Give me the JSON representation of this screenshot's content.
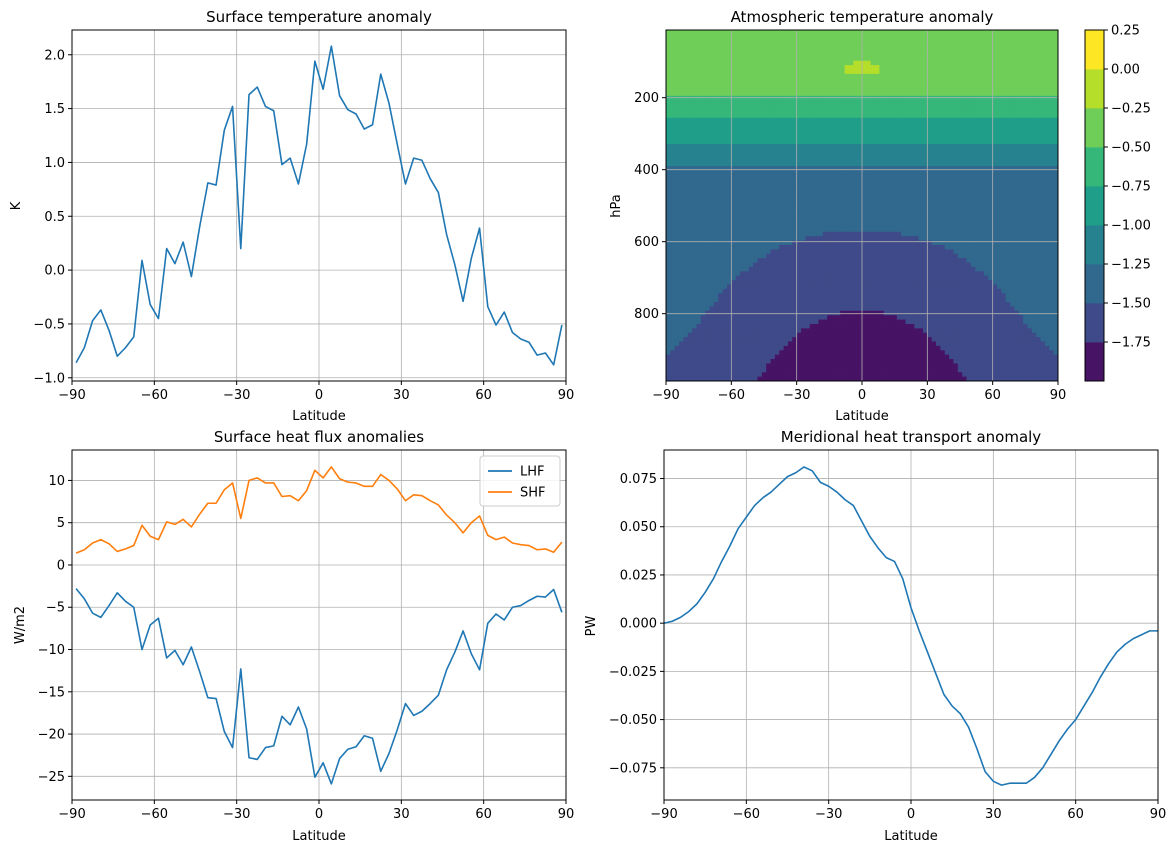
{
  "chart_data": [
    {
      "id": "surface_temp",
      "type": "line",
      "title": "Surface temperature anomaly",
      "xlabel": "Latitude",
      "ylabel": "K",
      "xlim": [
        -90,
        90
      ],
      "ylim": [
        -1.03,
        2.23
      ],
      "xticks": [
        -90,
        -60,
        -30,
        0,
        30,
        60,
        90
      ],
      "yticks": [
        -1.0,
        -0.5,
        0.0,
        0.5,
        1.0,
        1.5,
        2.0
      ],
      "ytick_labels": [
        "−1.0",
        "−0.5",
        "0.0",
        "0.5",
        "1.0",
        "1.5",
        "2.0"
      ],
      "xtick_labels": [
        "−90",
        "−60",
        "−30",
        "0",
        "30",
        "60",
        "90"
      ],
      "grid": true,
      "series": [
        {
          "name": "surface temperature",
          "color": "#1f77b4",
          "x": [
            -88.5,
            -85.5,
            -82.5,
            -79.5,
            -76.5,
            -73.5,
            -70.5,
            -67.5,
            -64.5,
            -61.5,
            -58.5,
            -55.5,
            -52.5,
            -49.5,
            -46.5,
            -43.5,
            -40.5,
            -37.5,
            -34.5,
            -31.5,
            -28.5,
            -25.5,
            -22.5,
            -19.5,
            -16.5,
            -13.5,
            -10.5,
            -7.5,
            -4.5,
            -1.5,
            1.5,
            4.5,
            7.5,
            10.5,
            13.5,
            16.5,
            19.5,
            22.5,
            25.5,
            28.5,
            31.5,
            34.5,
            37.5,
            40.5,
            43.5,
            46.5,
            49.5,
            52.5,
            55.5,
            58.5,
            61.5,
            64.5,
            67.5,
            70.5,
            73.5,
            76.5,
            79.5,
            82.5,
            85.5,
            88.5
          ],
          "values": [
            -0.86,
            -0.72,
            -0.47,
            -0.37,
            -0.56,
            -0.8,
            -0.72,
            -0.62,
            0.09,
            -0.32,
            -0.45,
            0.2,
            0.06,
            0.26,
            -0.06,
            0.4,
            0.81,
            0.79,
            1.3,
            1.52,
            0.2,
            1.63,
            1.7,
            1.52,
            1.48,
            0.98,
            1.04,
            0.8,
            1.17,
            1.94,
            1.68,
            2.08,
            1.62,
            1.49,
            1.45,
            1.31,
            1.35,
            1.82,
            1.55,
            1.17,
            0.8,
            1.04,
            1.02,
            0.85,
            0.72,
            0.33,
            0.05,
            -0.29,
            0.11,
            0.39,
            -0.34,
            -0.51,
            -0.39,
            -0.58,
            -0.64,
            -0.67,
            -0.79,
            -0.77,
            -0.88,
            -0.51
          ]
        }
      ]
    },
    {
      "id": "atmos_temp",
      "type": "heatmap",
      "title": "Atmospheric temperature anomaly",
      "xlabel": "Latitude",
      "ylabel": "hPa",
      "xlim": [
        -90,
        90
      ],
      "ylim": [
        987,
        12
      ],
      "y_inverted": true,
      "xticks": [
        -90,
        -60,
        -30,
        0,
        30,
        60,
        90
      ],
      "xtick_labels": [
        "−90",
        "−60",
        "−30",
        "0",
        "30",
        "60",
        "90"
      ],
      "yticks": [
        200,
        400,
        600,
        800
      ],
      "ytick_labels": [
        "200",
        "400",
        "600",
        "800"
      ],
      "grid": true,
      "levels": [
        -1.75,
        -1.5,
        -1.25,
        -1.0,
        -0.75,
        -0.5,
        -0.25,
        0.0,
        0.25
      ],
      "level_colors": [
        "#471365",
        "#3e4a89",
        "#31688e",
        "#26828e",
        "#1f9e89",
        "#35b779",
        "#6ece58",
        "#b5de2b",
        "#fde725"
      ],
      "colorbar_ticks": [
        "0.25",
        "0.00",
        "−0.25",
        "−0.50",
        "−0.75",
        "−1.00",
        "−1.25",
        "−1.50",
        "−1.75"
      ],
      "surface_max_anomaly": -1.7,
      "stratosphere_max_anomaly": 0.05
    },
    {
      "id": "heat_flux",
      "type": "line",
      "title": "Surface heat flux anomalies",
      "xlabel": "Latitude",
      "ylabel": "W/m2",
      "xlim": [
        -90,
        90
      ],
      "ylim": [
        -27.8,
        13.6
      ],
      "xticks": [
        -90,
        -60,
        -30,
        0,
        30,
        60,
        90
      ],
      "xtick_labels": [
        "−90",
        "−60",
        "−30",
        "0",
        "30",
        "60",
        "90"
      ],
      "yticks": [
        -25,
        -20,
        -15,
        -10,
        -5,
        0,
        5,
        10
      ],
      "ytick_labels": [
        "−25",
        "−20",
        "−15",
        "−10",
        "−5",
        "0",
        "5",
        "10"
      ],
      "grid": true,
      "legend": "top-right",
      "series": [
        {
          "name": "LHF",
          "color": "#1f77b4",
          "x": [
            -88.5,
            -85.5,
            -82.5,
            -79.5,
            -76.5,
            -73.5,
            -70.5,
            -67.5,
            -64.5,
            -61.5,
            -58.5,
            -55.5,
            -52.5,
            -49.5,
            -46.5,
            -43.5,
            -40.5,
            -37.5,
            -34.5,
            -31.5,
            -28.5,
            -25.5,
            -22.5,
            -19.5,
            -16.5,
            -13.5,
            -10.5,
            -7.5,
            -4.5,
            -1.5,
            1.5,
            4.5,
            7.5,
            10.5,
            13.5,
            16.5,
            19.5,
            22.5,
            25.5,
            28.5,
            31.5,
            34.5,
            37.5,
            40.5,
            43.5,
            46.5,
            49.5,
            52.5,
            55.5,
            58.5,
            61.5,
            64.5,
            67.5,
            70.5,
            73.5,
            76.5,
            79.5,
            82.5,
            85.5,
            88.5
          ],
          "values": [
            -2.8,
            -4.0,
            -5.7,
            -6.2,
            -4.8,
            -3.3,
            -4.3,
            -5.0,
            -10.0,
            -7.1,
            -6.3,
            -11.0,
            -10.1,
            -11.8,
            -9.7,
            -12.6,
            -15.7,
            -15.8,
            -19.7,
            -21.6,
            -12.3,
            -22.8,
            -23.0,
            -21.6,
            -21.4,
            -17.9,
            -18.9,
            -16.8,
            -19.4,
            -25.1,
            -23.4,
            -25.9,
            -22.9,
            -21.8,
            -21.5,
            -20.2,
            -20.5,
            -24.4,
            -22.3,
            -19.5,
            -16.4,
            -17.8,
            -17.3,
            -16.4,
            -15.4,
            -12.4,
            -10.3,
            -7.8,
            -10.5,
            -12.4,
            -6.9,
            -5.8,
            -6.5,
            -5.0,
            -4.8,
            -4.2,
            -3.7,
            -3.8,
            -2.9,
            -5.6
          ]
        },
        {
          "name": "SHF",
          "color": "#ff7f0e",
          "x": [
            -88.5,
            -85.5,
            -82.5,
            -79.5,
            -76.5,
            -73.5,
            -70.5,
            -67.5,
            -64.5,
            -61.5,
            -58.5,
            -55.5,
            -52.5,
            -49.5,
            -46.5,
            -43.5,
            -40.5,
            -37.5,
            -34.5,
            -31.5,
            -28.5,
            -25.5,
            -22.5,
            -19.5,
            -16.5,
            -13.5,
            -10.5,
            -7.5,
            -4.5,
            -1.5,
            1.5,
            4.5,
            7.5,
            10.5,
            13.5,
            16.5,
            19.5,
            22.5,
            25.5,
            28.5,
            31.5,
            34.5,
            37.5,
            40.5,
            43.5,
            46.5,
            49.5,
            52.5,
            55.5,
            58.5,
            61.5,
            64.5,
            67.5,
            70.5,
            73.5,
            76.5,
            79.5,
            82.5,
            85.5,
            88.5
          ],
          "values": [
            1.4,
            1.8,
            2.6,
            3.0,
            2.5,
            1.6,
            1.9,
            2.3,
            4.7,
            3.4,
            3.0,
            5.1,
            4.8,
            5.4,
            4.5,
            6.0,
            7.3,
            7.3,
            8.9,
            9.7,
            5.5,
            10.0,
            10.3,
            9.7,
            9.7,
            8.1,
            8.2,
            7.6,
            8.8,
            11.2,
            10.3,
            11.6,
            10.2,
            9.8,
            9.7,
            9.3,
            9.3,
            10.7,
            10.0,
            9.0,
            7.6,
            8.3,
            8.2,
            7.6,
            7.1,
            5.9,
            5.0,
            3.8,
            5.0,
            5.8,
            3.5,
            3.0,
            3.3,
            2.6,
            2.4,
            2.3,
            1.8,
            1.9,
            1.5,
            2.7
          ]
        }
      ]
    },
    {
      "id": "heat_transport",
      "type": "line",
      "title": "Meridional heat transport anomaly",
      "xlabel": "Latitude",
      "ylabel": "PW",
      "xlim": [
        -90,
        90
      ],
      "ylim": [
        -0.0917,
        0.0898
      ],
      "xticks": [
        -90,
        -60,
        -30,
        0,
        30,
        60,
        90
      ],
      "xtick_labels": [
        "−90",
        "−60",
        "−30",
        "0",
        "30",
        "60",
        "90"
      ],
      "yticks": [
        -0.075,
        -0.05,
        -0.025,
        0.0,
        0.025,
        0.05,
        0.075
      ],
      "ytick_labels": [
        "−0.075",
        "−0.050",
        "−0.025",
        "0.000",
        "0.025",
        "0.050",
        "0.075"
      ],
      "grid": true,
      "series": [
        {
          "name": "heat transport",
          "color": "#1f77b4",
          "x": [
            -90,
            -87,
            -84,
            -81,
            -78,
            -75,
            -72,
            -69,
            -66,
            -63,
            -60,
            -57,
            -54,
            -51,
            -48,
            -45,
            -42,
            -39,
            -36,
            -33,
            -30,
            -27,
            -24,
            -21,
            -18,
            -15,
            -12,
            -9,
            -6,
            -3,
            0,
            3,
            6,
            9,
            12,
            15,
            18,
            21,
            24,
            27,
            30,
            33,
            36,
            39,
            42,
            45,
            48,
            51,
            54,
            57,
            60,
            63,
            66,
            69,
            72,
            75,
            78,
            81,
            84,
            87,
            90
          ],
          "values": [
            0.0,
            0.001,
            0.003,
            0.006,
            0.01,
            0.016,
            0.023,
            0.032,
            0.04,
            0.049,
            0.055,
            0.061,
            0.065,
            0.068,
            0.072,
            0.076,
            0.078,
            0.081,
            0.079,
            0.073,
            0.071,
            0.068,
            0.064,
            0.061,
            0.053,
            0.045,
            0.039,
            0.034,
            0.032,
            0.023,
            0.008,
            -0.004,
            -0.015,
            -0.026,
            -0.037,
            -0.043,
            -0.047,
            -0.054,
            -0.065,
            -0.077,
            -0.082,
            -0.084,
            -0.083,
            -0.083,
            -0.083,
            -0.08,
            -0.075,
            -0.068,
            -0.061,
            -0.055,
            -0.05,
            -0.043,
            -0.036,
            -0.028,
            -0.021,
            -0.015,
            -0.011,
            -0.008,
            -0.006,
            -0.004,
            -0.004
          ]
        }
      ]
    }
  ]
}
